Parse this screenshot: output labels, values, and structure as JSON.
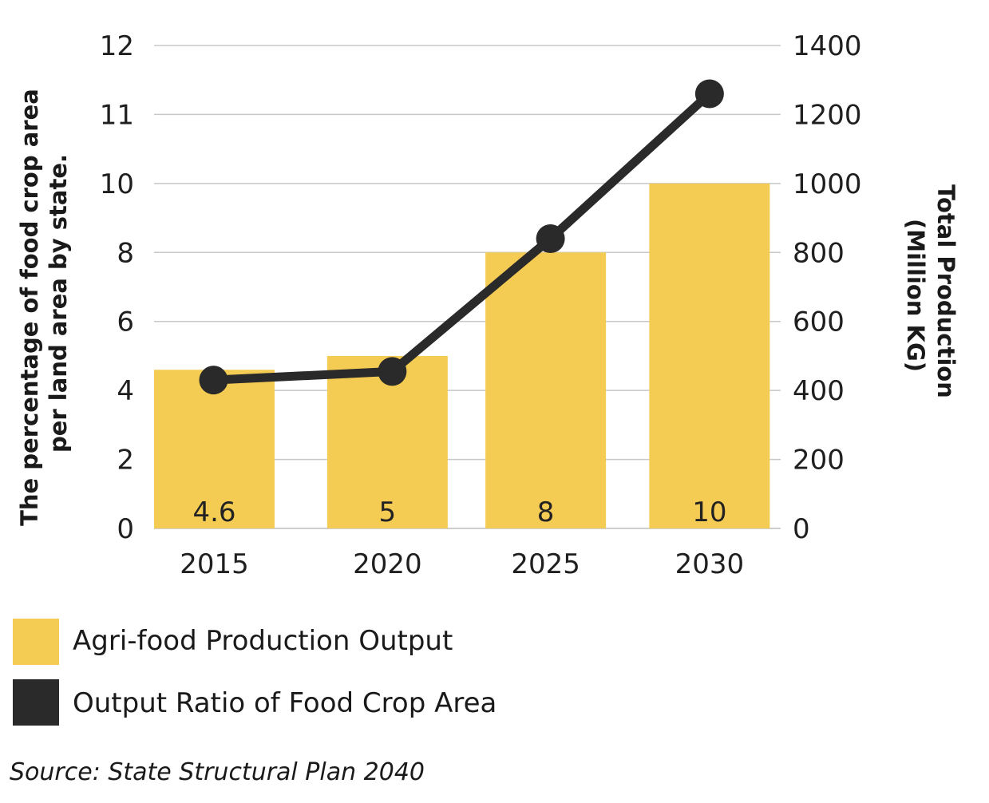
{
  "chart_data": {
    "type": "bar",
    "categories": [
      "2015",
      "2020",
      "2025",
      "2030"
    ],
    "left_axis": {
      "label_lines": [
        "The percentage of food crop area",
        "per land area by state."
      ],
      "ticks": [
        "0",
        "2",
        "4",
        "6",
        "8",
        "10",
        "11",
        "12"
      ]
    },
    "right_axis": {
      "label_lines": [
        "Total Production",
        "(Million KG)"
      ],
      "ticks": [
        "0",
        "200",
        "400",
        "600",
        "800",
        "1000",
        "1200",
        "1400"
      ],
      "ylim": [
        0,
        1400
      ]
    },
    "series": [
      {
        "name": "Agri-food Production Output",
        "type": "bar",
        "axis": "left",
        "values": [
          4.6,
          5,
          8,
          10
        ],
        "labels": [
          "4.6",
          "5",
          "8",
          "10"
        ]
      },
      {
        "name": "Output Ratio of Food Crop Area",
        "type": "line",
        "axis": "right",
        "values": [
          430,
          455,
          840,
          1260
        ]
      }
    ],
    "grid": true,
    "legend_position": "bottom-left"
  },
  "colors": {
    "bar": "#f5cc53",
    "line": "#2a2a2a",
    "grid": "#c8c8c8"
  },
  "source": "Source: State Structural Plan 2040"
}
